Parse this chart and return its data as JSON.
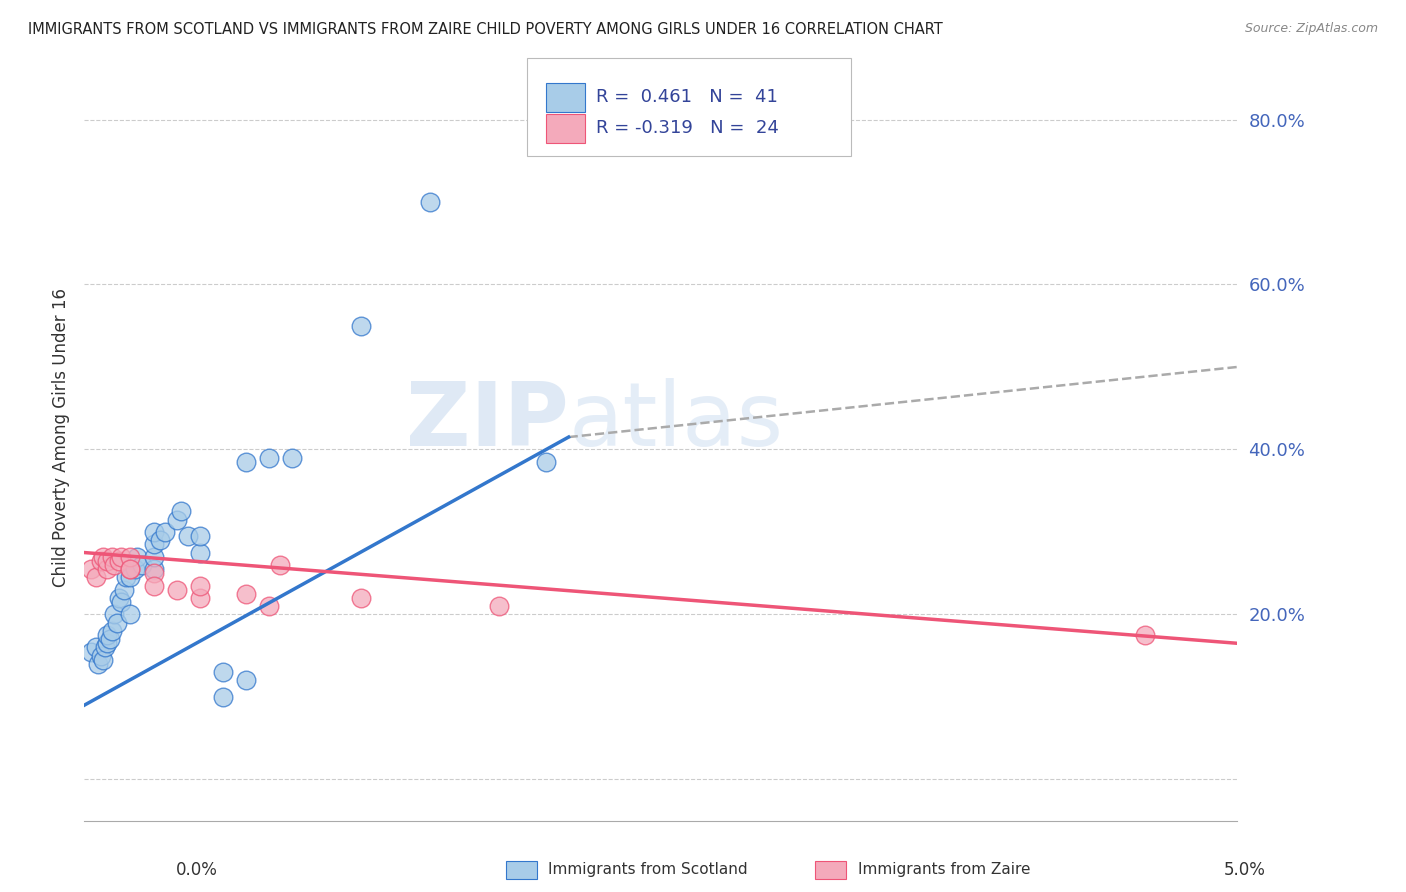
{
  "title": "IMMIGRANTS FROM SCOTLAND VS IMMIGRANTS FROM ZAIRE CHILD POVERTY AMONG GIRLS UNDER 16 CORRELATION CHART",
  "source": "Source: ZipAtlas.com",
  "ylabel": "Child Poverty Among Girls Under 16",
  "y_ticks": [
    0.0,
    0.2,
    0.4,
    0.6,
    0.8
  ],
  "y_tick_labels": [
    "",
    "20.0%",
    "40.0%",
    "60.0%",
    "80.0%"
  ],
  "x_lim": [
    0.0,
    0.05
  ],
  "y_lim": [
    -0.05,
    0.88
  ],
  "scotland_R": 0.461,
  "scotland_N": 41,
  "zaire_R": -0.319,
  "zaire_N": 24,
  "scotland_color": "#a8cce8",
  "zaire_color": "#f4aabb",
  "scotland_line_color": "#3377cc",
  "zaire_line_color": "#ee5577",
  "trend_dashed_color": "#aaaaaa",
  "watermark_zip": "ZIP",
  "watermark_atlas": "atlas",
  "background_color": "#ffffff",
  "legend_text_color": "#334499",
  "scotland_points": [
    [
      0.0003,
      0.155
    ],
    [
      0.0005,
      0.16
    ],
    [
      0.0006,
      0.14
    ],
    [
      0.0007,
      0.15
    ],
    [
      0.0008,
      0.145
    ],
    [
      0.0009,
      0.16
    ],
    [
      0.001,
      0.165
    ],
    [
      0.001,
      0.175
    ],
    [
      0.0011,
      0.17
    ],
    [
      0.0012,
      0.18
    ],
    [
      0.0013,
      0.2
    ],
    [
      0.0014,
      0.19
    ],
    [
      0.0015,
      0.22
    ],
    [
      0.0016,
      0.215
    ],
    [
      0.0017,
      0.23
    ],
    [
      0.0018,
      0.245
    ],
    [
      0.002,
      0.2
    ],
    [
      0.002,
      0.245
    ],
    [
      0.0022,
      0.255
    ],
    [
      0.0023,
      0.27
    ],
    [
      0.0025,
      0.26
    ],
    [
      0.003,
      0.255
    ],
    [
      0.003,
      0.27
    ],
    [
      0.003,
      0.285
    ],
    [
      0.003,
      0.3
    ],
    [
      0.0033,
      0.29
    ],
    [
      0.0035,
      0.3
    ],
    [
      0.004,
      0.315
    ],
    [
      0.0042,
      0.325
    ],
    [
      0.0045,
      0.295
    ],
    [
      0.005,
      0.275
    ],
    [
      0.005,
      0.295
    ],
    [
      0.006,
      0.1
    ],
    [
      0.006,
      0.13
    ],
    [
      0.007,
      0.385
    ],
    [
      0.007,
      0.12
    ],
    [
      0.008,
      0.39
    ],
    [
      0.009,
      0.39
    ],
    [
      0.012,
      0.55
    ],
    [
      0.015,
      0.7
    ],
    [
      0.02,
      0.385
    ]
  ],
  "zaire_points": [
    [
      0.0003,
      0.255
    ],
    [
      0.0005,
      0.245
    ],
    [
      0.0007,
      0.265
    ],
    [
      0.0008,
      0.27
    ],
    [
      0.001,
      0.255
    ],
    [
      0.001,
      0.265
    ],
    [
      0.0012,
      0.27
    ],
    [
      0.0013,
      0.26
    ],
    [
      0.0015,
      0.265
    ],
    [
      0.0016,
      0.27
    ],
    [
      0.002,
      0.255
    ],
    [
      0.002,
      0.27
    ],
    [
      0.002,
      0.255
    ],
    [
      0.003,
      0.25
    ],
    [
      0.003,
      0.235
    ],
    [
      0.004,
      0.23
    ],
    [
      0.005,
      0.22
    ],
    [
      0.005,
      0.235
    ],
    [
      0.007,
      0.225
    ],
    [
      0.008,
      0.21
    ],
    [
      0.0085,
      0.26
    ],
    [
      0.012,
      0.22
    ],
    [
      0.018,
      0.21
    ],
    [
      0.046,
      0.175
    ]
  ],
  "scotland_line_x": [
    0.0,
    0.021
  ],
  "scotland_line_y": [
    0.09,
    0.415
  ],
  "zaire_line_x": [
    0.0,
    0.05
  ],
  "zaire_line_y": [
    0.275,
    0.165
  ],
  "dashed_line_x": [
    0.021,
    0.05
  ],
  "dashed_line_y": [
    0.415,
    0.5
  ]
}
